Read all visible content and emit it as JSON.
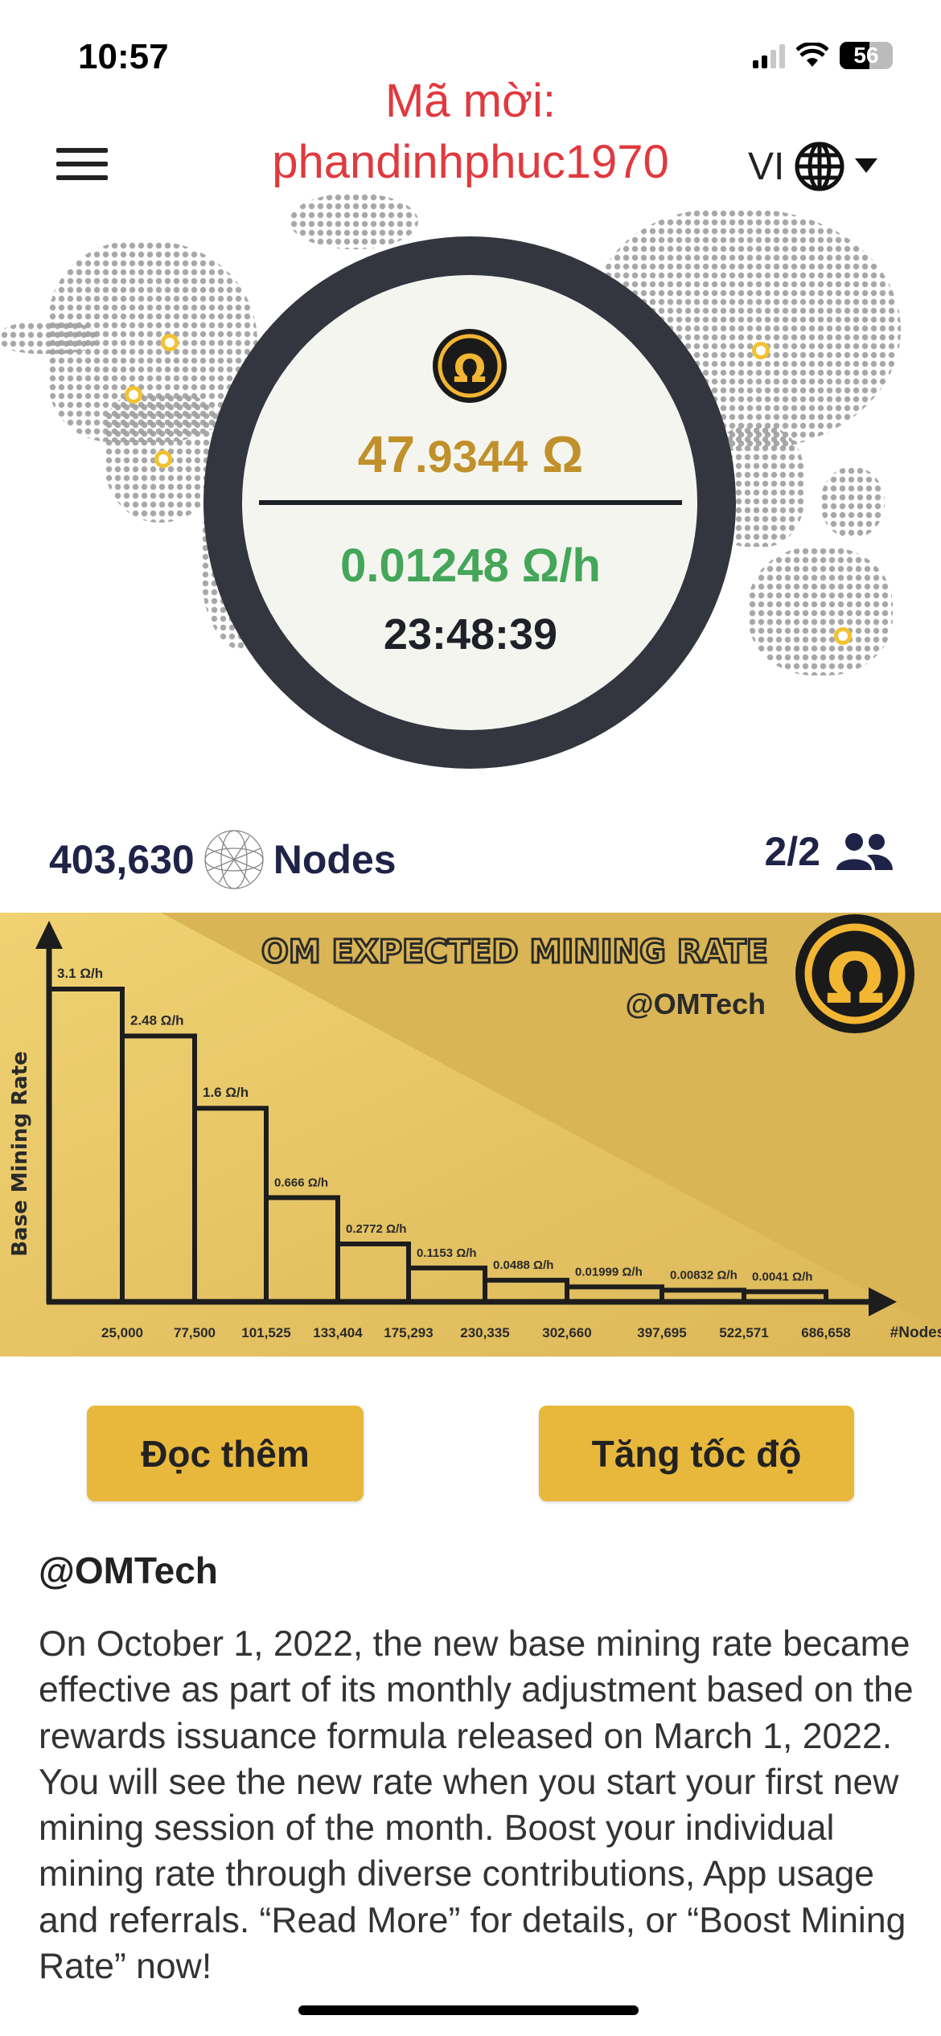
{
  "status_bar": {
    "time": "10:57",
    "battery": "56"
  },
  "header": {
    "invite_label": "Mã mời:",
    "invite_code": "phandinhphuc1970",
    "language": "VI"
  },
  "mining": {
    "balance_int": "47",
    "balance_dec": ".9344",
    "balance_unit": "Ω",
    "rate": "0.01248 Ω/h",
    "timer": "23:48:39"
  },
  "stats": {
    "nodes_count": "403,630",
    "nodes_label": "Nodes",
    "team": "2/2"
  },
  "colors": {
    "gold": "#c0902b",
    "green": "#44a659",
    "button": "#e8b83c",
    "invite": "#e0393e",
    "ring": "#33353f"
  },
  "chart_data": {
    "type": "bar",
    "title": "OM EXPECTED MINING RATE",
    "subtitle": "@OMTech",
    "ylabel": "Base Mining Rate",
    "xlabel": "#Nodes",
    "tick_labels": [
      "25,000",
      "77,500",
      "101,525",
      "133,404",
      "175,293",
      "230,335",
      "302,660",
      "397,695",
      "522,571",
      "686,658"
    ],
    "values": [
      3.1,
      2.48,
      1.6,
      0.666,
      0.2772,
      0.1153,
      0.0488,
      0.01999,
      0.00832,
      0.0041
    ],
    "data_labels": [
      "3.1 Ω/h",
      "2.48 Ω/h",
      "1.6 Ω/h",
      "0.666 Ω/h",
      "0.2772 Ω/h",
      "0.1153 Ω/h",
      "0.0488 Ω/h",
      "0.01999 Ω/h",
      "0.00832 Ω/h",
      "0.0041 Ω/h"
    ]
  },
  "buttons": {
    "read_more": "Đọc thêm",
    "boost": "Tăng tốc độ"
  },
  "post": {
    "author": "@OMTech",
    "body": "On October 1, 2022, the new base mining rate became effective as part of its monthly adjustment based on the rewards issuance formula released on March 1, 2022. You will see the new rate when you start your first new mining session of the month. Boost your individual mining rate through diverse contributions, App usage and referrals. “Read More” for details, or “Boost Mining Rate” now!"
  }
}
